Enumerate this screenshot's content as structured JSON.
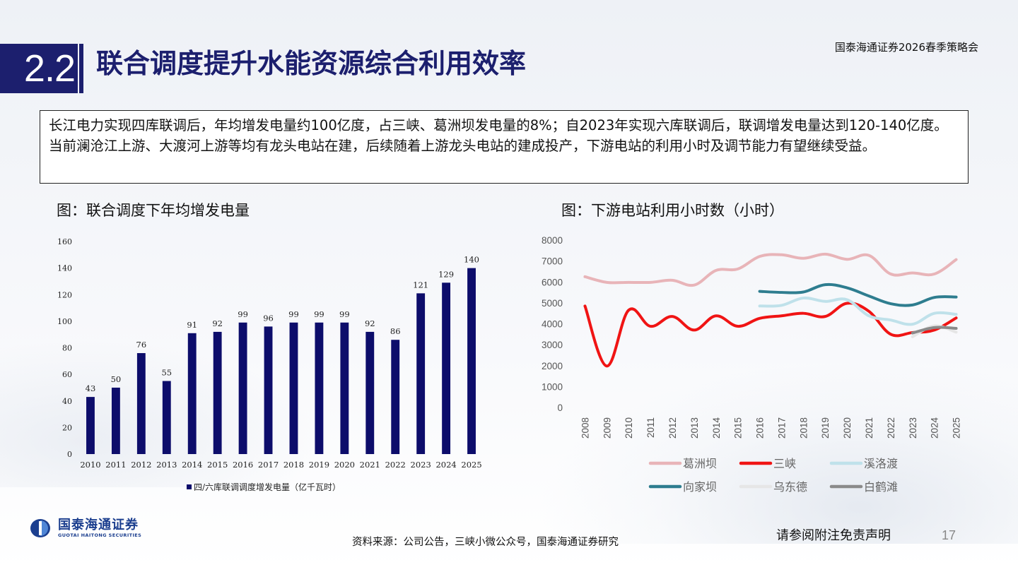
{
  "header": {
    "section_number": "2.2",
    "title": "联合调度提升水能资源综合利用效率",
    "report_tag": "国泰海通证券2026春季策略会"
  },
  "summary": "长江电力实现四库联调后，年均增发电量约100亿度，占三峡、葛洲坝发电量的8%；自2023年实现六库联调后，联调增发电量达到120-140亿度。当前澜沧江上游、大渡河上游等均有龙头电站在建，后续随着上游龙头电站的建成投产，下游电站的利用小时及调节能力有望继续受益。",
  "figures": {
    "left_caption": "图：联合调度下年均增发电量",
    "right_caption": "图：下游电站利用小时数（小时）"
  },
  "chart_data": [
    {
      "type": "bar",
      "categories": [
        "2010",
        "2011",
        "2012",
        "2013",
        "2014",
        "2015",
        "2016",
        "2017",
        "2018",
        "2019",
        "2020",
        "2021",
        "2022",
        "2023",
        "2024",
        "2025"
      ],
      "series": [
        {
          "name": "四/六库联调调度增发电量（亿千瓦时）",
          "values": [
            43,
            50,
            76,
            55,
            91,
            92,
            99,
            96,
            99,
            99,
            99,
            92,
            86,
            121,
            129,
            140
          ],
          "color": "#0d0d6b"
        }
      ],
      "ylim": [
        0,
        160
      ],
      "yticks": [
        0,
        20,
        40,
        60,
        80,
        100,
        120,
        140,
        160
      ],
      "data_labels": true,
      "legend": "bottom",
      "grid": false
    },
    {
      "type": "line",
      "x": [
        "2008",
        "2009",
        "2010",
        "2011",
        "2012",
        "2013",
        "2014",
        "2015",
        "2016",
        "2017",
        "2018",
        "2019",
        "2020",
        "2021",
        "2022",
        "2023",
        "2024",
        "2025"
      ],
      "series": [
        {
          "name": "葛洲坝",
          "color": "#e8b4b8",
          "values": [
            6250,
            5980,
            5980,
            5980,
            6080,
            5850,
            6550,
            6620,
            7220,
            7300,
            7130,
            7330,
            7080,
            7270,
            6380,
            6430,
            6380,
            7070
          ]
        },
        {
          "name": "三峡",
          "color": "#f01414",
          "values": [
            4850,
            1980,
            4650,
            3880,
            4350,
            3700,
            4380,
            3880,
            4260,
            4380,
            4500,
            4350,
            4980,
            4600,
            3500,
            3580,
            3700,
            4280
          ]
        },
        {
          "name": "溪洛渡",
          "color": "#bfe1ea",
          "values": [
            null,
            null,
            null,
            null,
            null,
            null,
            null,
            null,
            4850,
            4880,
            5230,
            5070,
            5150,
            4380,
            4180,
            3980,
            4500,
            4450
          ]
        },
        {
          "name": "向家坝",
          "color": "#2e7d8f",
          "values": [
            null,
            null,
            null,
            null,
            null,
            null,
            null,
            null,
            5550,
            5500,
            5520,
            5870,
            5720,
            5330,
            4960,
            4900,
            5260,
            5280
          ]
        },
        {
          "name": "乌东德",
          "color": "#e6e6e6",
          "values": [
            null,
            null,
            null,
            null,
            null,
            null,
            null,
            null,
            null,
            null,
            null,
            null,
            null,
            null,
            null,
            3380,
            3900,
            3600
          ]
        },
        {
          "name": "白鹤滩",
          "color": "#8a8a8a",
          "values": [
            null,
            null,
            null,
            null,
            null,
            null,
            null,
            null,
            null,
            null,
            null,
            null,
            null,
            null,
            null,
            3560,
            3820,
            3780
          ]
        }
      ],
      "ylim": [
        0,
        8000
      ],
      "yticks": [
        0,
        1000,
        2000,
        3000,
        4000,
        5000,
        6000,
        7000,
        8000
      ],
      "legend": "bottom",
      "grid": false
    }
  ],
  "footer": {
    "logo_cn": "国泰海通证券",
    "logo_en": "GUOTAI HAITONG SECURITIES",
    "source": "资料来源：公司公告，三峡小微公众号，国泰海通证券研究",
    "disclaimer": "请参阅附注免责声明",
    "page": "17"
  }
}
